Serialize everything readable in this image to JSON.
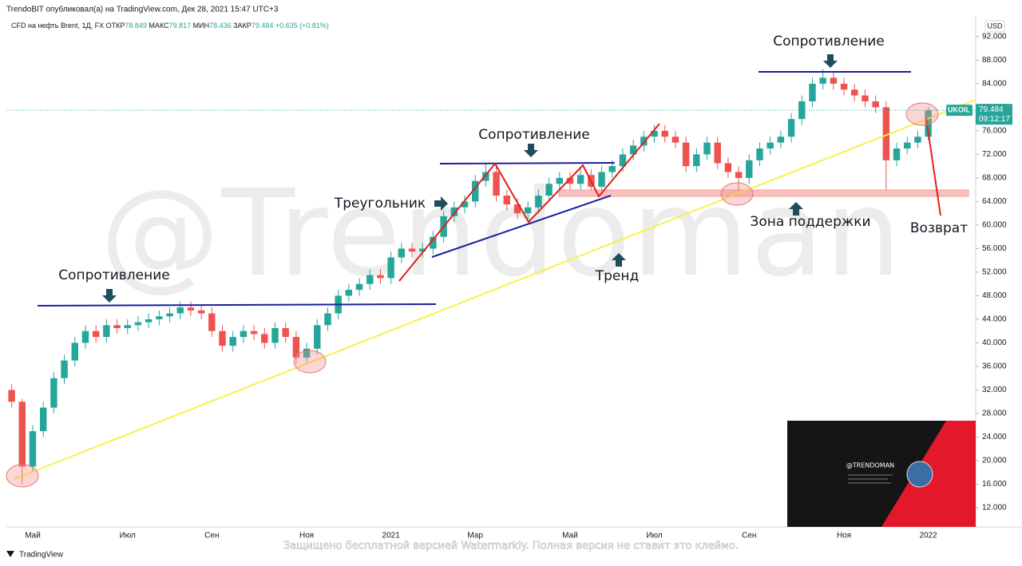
{
  "header": {
    "published": "TrendoBIT опубликовал(а) на TradingView.com, Дек 28, 2021 15:47 UTC+3",
    "symbol": "CFD на нефть Brent, 1Д, FX",
    "open_label": "ОТКР",
    "open": 78.849,
    "high_label": "МАКС",
    "high": 79.817,
    "low_label": "МИН",
    "low": 78.436,
    "close_label": "ЗАКР",
    "close": 79.484,
    "change": "+0.635 (+0.81%)"
  },
  "annotations": {
    "resistance_top": "Сопротивление",
    "resistance_mid": "Сопротивление",
    "resistance_left": "Сопротивление",
    "triangle": "Треугольник",
    "support_zone": "Зона поддержки",
    "trend": "Тренд",
    "return": "Возврат"
  },
  "watermark": "@Trendoman",
  "inset": {
    "title": "@TRENDOMAN"
  },
  "footer": {
    "logo": "TradingView",
    "notice": "Защищено бесплатной версией Watermarkly. Полная версия не ставит это клеймо."
  },
  "chart_data": {
    "type": "candlestick",
    "currency": "USD",
    "ticker": "UKOIL",
    "last_price": {
      "value": 79.484,
      "label": "79.484"
    },
    "countdown": "09:12:17",
    "up_color": "#26a69a",
    "down_color": "#ef5350",
    "grid": false,
    "categories": [
      null,
      null,
      "Май",
      null,
      null,
      null,
      null,
      null,
      null,
      null,
      null,
      "Июл",
      null,
      null,
      null,
      null,
      null,
      null,
      null,
      "Сен",
      null,
      null,
      null,
      null,
      null,
      null,
      null,
      null,
      "Ноя",
      null,
      null,
      null,
      null,
      null,
      null,
      null,
      "2021",
      null,
      null,
      null,
      null,
      null,
      null,
      null,
      "Мар",
      null,
      null,
      null,
      null,
      null,
      null,
      null,
      null,
      "Май",
      null,
      null,
      null,
      null,
      null,
      null,
      null,
      "Июл",
      null,
      null,
      null,
      null,
      null,
      null,
      null,
      null,
      "Сен",
      null,
      null,
      null,
      null,
      null,
      null,
      null,
      null,
      "Ноя",
      null,
      null,
      null,
      null,
      null,
      null,
      null,
      "2022",
      null,
      null,
      null,
      null
    ],
    "open": [
      32,
      30,
      19,
      25,
      29,
      34,
      37,
      40,
      42,
      41,
      43,
      42.5,
      43,
      43.5,
      44,
      44.5,
      45,
      46,
      45.5,
      45,
      42,
      39.5,
      41,
      42,
      41.5,
      40,
      42.5,
      41,
      37.5,
      39,
      43,
      45,
      48,
      49,
      50,
      51.5,
      51,
      54.5,
      56,
      55.5,
      56,
      58,
      61.5,
      63,
      64,
      67.5,
      69,
      65,
      63.5,
      62,
      63,
      65,
      67,
      68,
      67,
      68.5,
      66.5,
      69,
      70,
      72,
      73.5,
      75,
      76,
      75,
      74,
      70,
      72,
      74,
      70.5,
      69,
      68,
      71,
      73,
      74,
      75,
      78,
      81,
      84,
      85,
      84,
      83,
      82,
      81,
      80,
      71,
      73,
      74,
      75,
      null,
      null,
      null,
      null
    ],
    "high": [
      33,
      30.5,
      26,
      30,
      35,
      38,
      41,
      43,
      43,
      44,
      44,
      44,
      44.5,
      45,
      45.5,
      46,
      47,
      47,
      46.5,
      46,
      43,
      42,
      43,
      43,
      42.5,
      43.5,
      43.5,
      42,
      40,
      44,
      46,
      49,
      50,
      51,
      52.5,
      52.5,
      55.5,
      57,
      57,
      57,
      59,
      62.5,
      64,
      65,
      68.5,
      70.5,
      70,
      66,
      64.5,
      64,
      66,
      68,
      69,
      69,
      69.5,
      69.5,
      70,
      71,
      73,
      74.5,
      76,
      77,
      77,
      76,
      75,
      73,
      75,
      75,
      71.5,
      70,
      72,
      74,
      75,
      76,
      79,
      82,
      85,
      86.5,
      86,
      85,
      84,
      83,
      82,
      81,
      74,
      75,
      76,
      80,
      null,
      null,
      null,
      null
    ],
    "low": [
      29,
      16,
      18,
      24,
      28,
      33,
      36,
      39,
      40,
      40,
      41.5,
      41.5,
      42,
      42.5,
      43,
      43.5,
      44,
      44.5,
      44,
      41,
      38.5,
      38.5,
      40,
      40.5,
      39,
      39,
      40,
      36.5,
      36.5,
      38,
      42,
      44,
      47,
      48,
      49,
      50,
      50,
      53.5,
      54.5,
      54.5,
      55,
      57,
      60.5,
      62,
      63,
      66.5,
      64,
      62.5,
      61,
      61,
      62,
      64,
      66,
      66,
      66,
      65.5,
      65.5,
      68,
      69,
      71,
      72.5,
      74,
      74,
      73,
      69,
      69,
      71,
      69.5,
      68,
      65.5,
      67,
      70,
      72,
      73,
      74,
      77,
      80,
      83,
      83,
      82,
      81,
      80,
      79,
      66,
      70,
      72,
      73,
      74.5,
      null,
      null,
      null,
      null
    ],
    "close": [
      30,
      19,
      25,
      29,
      34,
      37,
      40,
      42,
      41,
      43,
      42.5,
      43,
      43.5,
      44,
      44.5,
      45,
      46,
      45.5,
      45,
      42,
      39.5,
      41,
      42,
      41.5,
      40,
      42.5,
      41,
      37.5,
      39,
      43,
      45,
      48,
      49,
      50,
      51.5,
      51,
      54.5,
      56,
      55.5,
      56,
      58,
      61.5,
      63,
      64,
      67.5,
      69,
      65,
      63.5,
      62,
      63,
      65,
      67,
      68,
      67,
      68.5,
      66.5,
      69,
      70,
      72,
      73.5,
      75,
      76,
      75,
      74,
      70,
      72,
      74,
      70.5,
      69,
      68,
      71,
      73,
      74,
      75,
      78,
      81,
      84,
      85,
      84,
      83,
      82,
      81,
      80,
      71,
      73,
      74,
      75,
      79.484,
      null,
      null,
      null,
      null
    ],
    "ylim": [
      8.75,
      95.5
    ],
    "yticks": [
      {
        "value": 12,
        "label": "12.000"
      },
      {
        "value": 16,
        "label": "16.000"
      },
      {
        "value": 20,
        "label": "20.000"
      },
      {
        "value": 24,
        "label": "24.000"
      },
      {
        "value": 28,
        "label": "28.000"
      },
      {
        "value": 32,
        "label": "32.000"
      },
      {
        "value": 36,
        "label": "36.000"
      },
      {
        "value": 40,
        "label": "40.000"
      },
      {
        "value": 44,
        "label": "44.000"
      },
      {
        "value": 48,
        "label": "48.000"
      },
      {
        "value": 52,
        "label": "52.000"
      },
      {
        "value": 56,
        "label": "56.000"
      },
      {
        "value": 60,
        "label": "60.000"
      },
      {
        "value": 64,
        "label": "64.000"
      },
      {
        "value": 68,
        "label": "68.000"
      },
      {
        "value": 72,
        "label": "72.000"
      },
      {
        "value": 76,
        "label": "76.000"
      },
      {
        "value": 80,
        "label": "80.000"
      },
      {
        "value": 84,
        "label": "84.000"
      },
      {
        "value": 88,
        "label": "88.000"
      },
      {
        "value": 92,
        "label": "92.000"
      }
    ]
  }
}
